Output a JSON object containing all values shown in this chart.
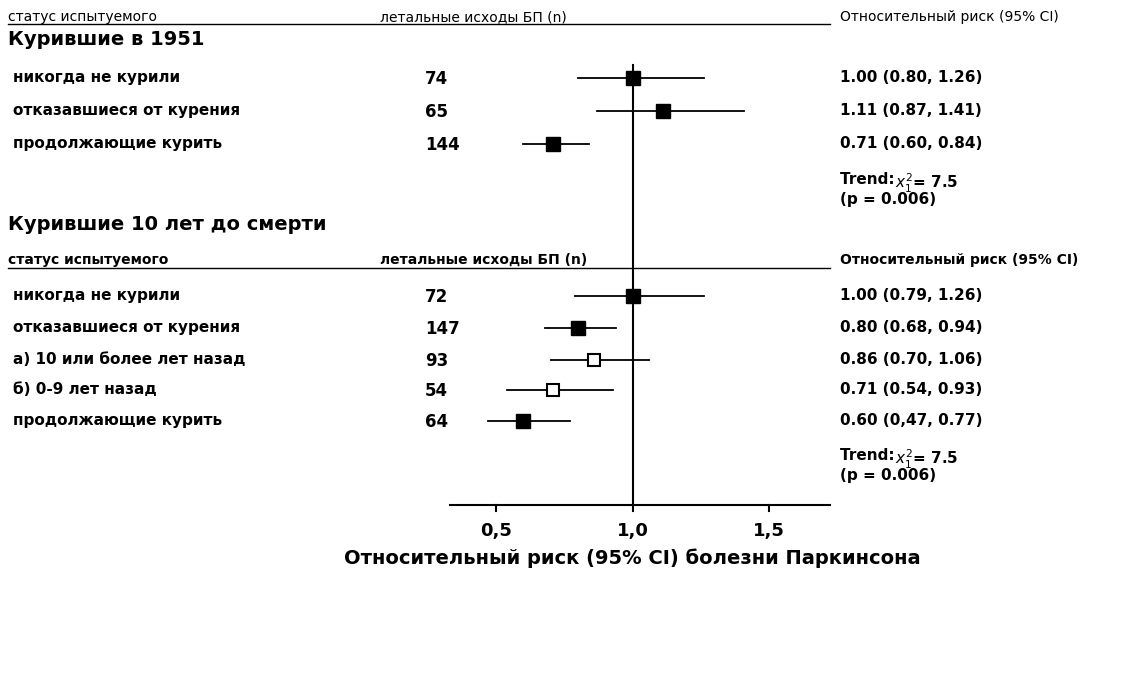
{
  "top_header": [
    "статус испытуемого",
    "летальные исходы БП (n)",
    "Относительный риск (95% CI)"
  ],
  "section1_title": "Курившие в 1951",
  "section1_rows": [
    {
      "label": "никогда не курили",
      "n": "74",
      "rr": 1.0,
      "lo": 0.8,
      "hi": 1.26,
      "ci_text": "1.00 (0.80, 1.26)",
      "marker": "filled_square"
    },
    {
      "label": "отказавшиеся от курения",
      "n": "65",
      "rr": 1.11,
      "lo": 0.87,
      "hi": 1.41,
      "ci_text": "1.11 (0.87, 1.41)",
      "marker": "filled_square"
    },
    {
      "label": "продолжающие курить",
      "n": "144",
      "rr": 0.71,
      "lo": 0.6,
      "hi": 0.84,
      "ci_text": "0.71 (0.60, 0.84)",
      "marker": "filled_square"
    }
  ],
  "section1_trend": "Trend:  ",
  "section1_chi": "$x_1^2$= 7.5",
  "section1_p": "(p = 0.006)",
  "section2_title": "Курившие 10 лет до смерти",
  "section2_header": [
    "статус испытуемого",
    "летальные исходы БП (n)",
    "Относительный риск (95% CI)"
  ],
  "section2_rows": [
    {
      "label": "никогда не курили",
      "n": "72",
      "rr": 1.0,
      "lo": 0.79,
      "hi": 1.26,
      "ci_text": "1.00 (0.79, 1.26)",
      "marker": "filled_square"
    },
    {
      "label": "отказавшиеся от курения",
      "n": "147",
      "rr": 0.8,
      "lo": 0.68,
      "hi": 0.94,
      "ci_text": "0.80 (0.68, 0.94)",
      "marker": "filled_square"
    },
    {
      "label": "а) 10 или более лет назад",
      "n": "93",
      "rr": 0.86,
      "lo": 0.7,
      "hi": 1.06,
      "ci_text": "0.86 (0.70, 1.06)",
      "marker": "open_square"
    },
    {
      "label": "б) 0-9 лет назад",
      "n": "54",
      "rr": 0.71,
      "lo": 0.54,
      "hi": 0.93,
      "ci_text": "0.71 (0.54, 0.93)",
      "marker": "open_square"
    },
    {
      "label": "продолжающие курить",
      "n": "64",
      "rr": 0.6,
      "lo": 0.47,
      "hi": 0.77,
      "ci_text": "0.60 (0,47, 0.77)",
      "marker": "filled_square"
    }
  ],
  "section2_trend": "Trend:  ",
  "section2_chi": "$x_1^2$= 7.5",
  "section2_p": "(p = 0.006)",
  "xlabel": "Относительный риск (95% CI) болезни Паркинсона",
  "xmin": 0.35,
  "xmax": 1.65,
  "xticks": [
    0.5,
    1.0,
    1.5
  ],
  "xticklabels": [
    "0,5",
    "1,0",
    "1,5"
  ],
  "ref_line": 1.0,
  "background_color": "#ffffff"
}
